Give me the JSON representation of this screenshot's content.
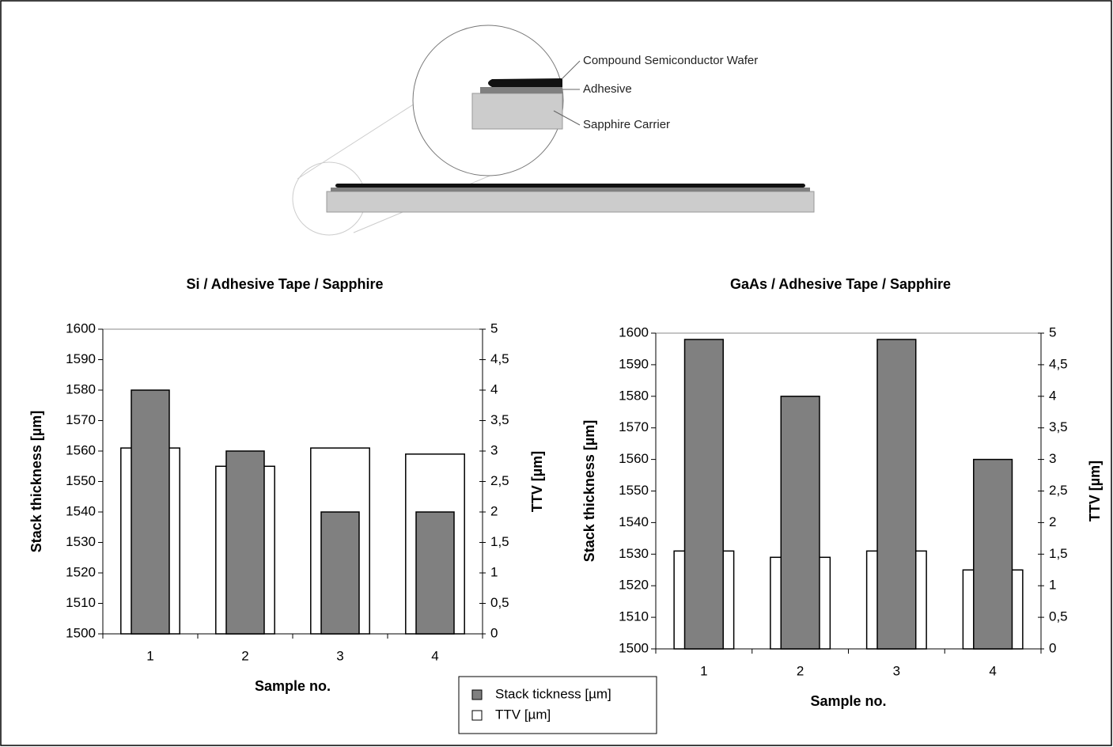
{
  "diagram": {
    "labels": [
      "Compound Semiconductor Wafer",
      "Adhesive",
      "Sapphire Carrier"
    ]
  },
  "chart_data": [
    {
      "type": "bar",
      "title": "Si / Adhesive Tape / Sapphire",
      "x_label": "Sample no.",
      "y_label": "Stack thickness [µm]",
      "y2_label": "TTV [µm]",
      "categories": [
        "1",
        "2",
        "3",
        "4"
      ],
      "series": [
        {
          "name": "Stack tickness [µm]",
          "color": "#808080",
          "values": [
            1580,
            1560,
            1540,
            1540
          ]
        },
        {
          "name": "TTV [µm]",
          "color": "#ffffff",
          "axis": "y2",
          "values": [
            3.05,
            2.75,
            3.05,
            2.95
          ]
        }
      ],
      "ylim": [
        1500,
        1600
      ],
      "yticks": [
        1500,
        1510,
        1520,
        1530,
        1540,
        1550,
        1560,
        1570,
        1580,
        1590,
        1600
      ],
      "y2lim": [
        0,
        5
      ],
      "y2ticks": [
        0,
        {
          "value": 0.5,
          "label": "0,5"
        },
        1,
        {
          "value": 1.5,
          "label": "1,5"
        },
        2,
        {
          "value": 2.5,
          "label": "2,5"
        },
        3,
        {
          "value": 3.5,
          "label": "3,5"
        },
        4,
        {
          "value": 4.5,
          "label": "4,5"
        },
        5
      ],
      "grid": false
    },
    {
      "type": "bar",
      "title": "GaAs / Adhesive Tape / Sapphire",
      "x_label": "Sample no.",
      "y_label": "Stack thickness [µm]",
      "y2_label": "TTV [µm]",
      "categories": [
        "1",
        "2",
        "3",
        "4"
      ],
      "series": [
        {
          "color": "#808080",
          "values": [
            1598,
            1580,
            1598,
            1560
          ]
        },
        {
          "color": "#ffffff",
          "axis": "y2",
          "values": [
            1.55,
            1.45,
            1.55,
            1.25
          ]
        }
      ],
      "ylim": [
        1500,
        1600
      ],
      "yticks": [
        1500,
        1510,
        1520,
        1530,
        1540,
        1550,
        1560,
        1570,
        1580,
        1590,
        1600
      ],
      "y2lim": [
        0,
        5
      ],
      "y2ticks": [
        0,
        {
          "value": 0.5,
          "label": "0,5"
        },
        1,
        {
          "value": 1.5,
          "label": "1,5"
        },
        2,
        {
          "value": 2.5,
          "label": "2,5"
        },
        3,
        {
          "value": 3.5,
          "label": "3,5"
        },
        4,
        {
          "value": 4.5,
          "label": "4,5"
        },
        5
      ],
      "grid": false
    }
  ]
}
